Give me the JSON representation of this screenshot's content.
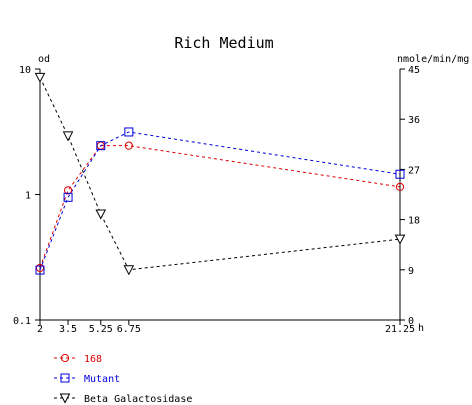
{
  "chart_data": {
    "type": "line",
    "title": "Rich Medium",
    "x": [
      2,
      3.5,
      5.25,
      6.75,
      21.25
    ],
    "x_ticks": [
      "2",
      "3.5",
      "5.25",
      "6.75",
      "21.25"
    ],
    "xlim": [
      2,
      21.25
    ],
    "xunit": "h",
    "y_left": {
      "label": "od",
      "scale": "log",
      "range": [
        0.1,
        10
      ],
      "ticks": [
        "0.1",
        "1",
        "10"
      ]
    },
    "y_right": {
      "label": "nmole/min/mg",
      "scale": "linear",
      "range": [
        0,
        45
      ],
      "ticks": [
        "0",
        "9",
        "18",
        "27",
        "36",
        "45"
      ]
    },
    "series": [
      {
        "name": "168",
        "axis": "left",
        "color": "#dd0000",
        "marker": "circle",
        "values": [
          0.26,
          1.08,
          2.45,
          2.45,
          1.15
        ]
      },
      {
        "name": "Mutant",
        "axis": "left",
        "color": "#0000dd",
        "marker": "square",
        "values": [
          0.25,
          0.95,
          2.45,
          3.15,
          1.45
        ]
      },
      {
        "name": "Beta Galactosidase",
        "axis": "right",
        "color": "#000000",
        "marker": "triangle-down",
        "values": [
          43.5,
          33,
          19,
          9,
          14.5
        ]
      }
    ],
    "grid": false,
    "legend_position": "bottom-left"
  }
}
